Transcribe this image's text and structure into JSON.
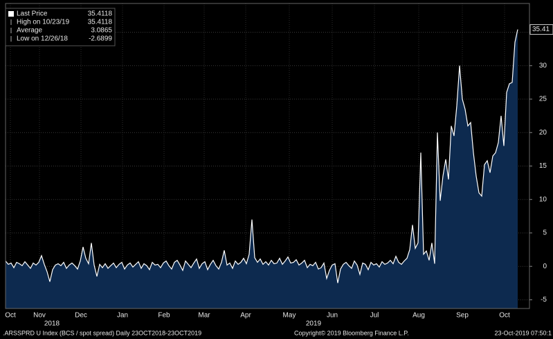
{
  "chart_data": {
    "type": "area",
    "legend": [
      {
        "label": "Last Price",
        "value": 35.4118
      },
      {
        "label": "High on 10/23/19",
        "value": 35.4118
      },
      {
        "label": "Average",
        "value": 3.0865
      },
      {
        "label": "Low on 12/26/18",
        "value": -2.6899
      }
    ],
    "series": [
      {
        "name": "Last Price",
        "color": "#ffffff",
        "fill": "#0d2a4f",
        "values": [
          0.8,
          0.3,
          0.5,
          -0.2,
          0.6,
          0.4,
          0.1,
          0.7,
          0.2,
          -0.3,
          0.5,
          0.2,
          0.6,
          1.6,
          0.3,
          -0.8,
          -2.3,
          -0.5,
          0.2,
          0.4,
          0.1,
          0.6,
          -0.3,
          0.2,
          0.5,
          0.1,
          -0.4,
          0.8,
          2.9,
          1.2,
          0.4,
          3.5,
          0.2,
          -1.5,
          0.3,
          -0.2,
          0.4,
          -0.3,
          0.1,
          0.5,
          -0.2,
          0.3,
          0.6,
          -0.4,
          0.2,
          0.5,
          -0.1,
          0.3,
          0.7,
          -0.3,
          0.4,
          0.1,
          -0.5,
          0.6,
          0.2,
          0.3,
          -0.2,
          0.5,
          0.8,
          0.1,
          -0.4,
          0.6,
          0.9,
          0.2,
          -0.6,
          0.8,
          0.3,
          -0.2,
          0.5,
          1.1,
          -0.3,
          0.4,
          0.7,
          -0.5,
          0.3,
          0.9,
          0.1,
          -0.4,
          0.6,
          2.4,
          0.2,
          0.5,
          -0.3,
          0.8,
          0.3,
          0.6,
          1.2,
          0.4,
          1.8,
          7.0,
          1.3,
          0.6,
          1.1,
          0.3,
          0.7,
          0.2,
          0.9,
          0.4,
          0.5,
          1.2,
          0.3,
          0.8,
          1.4,
          0.5,
          0.6,
          1.0,
          0.2,
          0.5,
          0.9,
          -0.2,
          0.3,
          0.1,
          0.6,
          -0.4,
          -0.2,
          0.5,
          -1.8,
          -0.6,
          0.2,
          0.4,
          -2.5,
          -0.4,
          0.3,
          0.6,
          0.1,
          -0.3,
          0.8,
          0.2,
          -1.2,
          0.5,
          0.3,
          -0.5,
          0.6,
          0.2,
          0.4,
          -0.1,
          0.7,
          0.3,
          0.5,
          0.9,
          0.4,
          1.5,
          0.6,
          0.3,
          0.8,
          1.2,
          2.5,
          6.2,
          2.7,
          3.5,
          17.0,
          1.8,
          2.3,
          0.9,
          3.5,
          0.4,
          20.0,
          9.8,
          13.5,
          16.0,
          13.0,
          21.0,
          19.5,
          24.0,
          30.0,
          25.0,
          23.5,
          21.0,
          21.5,
          17.0,
          13.5,
          11.0,
          10.5,
          15.2,
          15.8,
          14.0,
          16.5,
          17.0,
          18.5,
          22.5,
          18.0,
          26.0,
          27.3,
          27.5,
          33.5,
          35.4118
        ]
      }
    ],
    "last_value_tag": 35.41,
    "ylim": [
      -6.3,
      39.3
    ],
    "yticks": [
      -5,
      0,
      5,
      10,
      15,
      20,
      25,
      30,
      35
    ],
    "xlim": [
      0,
      189.25
    ],
    "xticks": [
      {
        "value": 1.75,
        "label": "Oct"
      },
      {
        "value": 12.25,
        "label": "Nov"
      },
      {
        "value": 27.25,
        "label": "Dec"
      },
      {
        "value": 42.25,
        "label": "Jan"
      },
      {
        "value": 57.25,
        "label": "Feb"
      },
      {
        "value": 71.75,
        "label": "Mar"
      },
      {
        "value": 86.75,
        "label": "Apr"
      },
      {
        "value": 102.5,
        "label": "May"
      },
      {
        "value": 118,
        "label": "Jun"
      },
      {
        "value": 133.25,
        "label": "Jul"
      },
      {
        "value": 149.25,
        "label": "Aug"
      },
      {
        "value": 165,
        "label": "Sep"
      },
      {
        "value": 180.25,
        "label": "Oct"
      }
    ],
    "year_labels": [
      {
        "value": 16.75,
        "label": "2018"
      },
      {
        "value": 111.25,
        "label": "2019"
      }
    ],
    "grid": true,
    "footer": {
      "left": ".ARSSPRD U Index (BCS / spot spread)  Daily 23OCT2018-23OCT2019",
      "center": "Copyright© 2019 Bloomberg Finance L.P.",
      "right": "23-Oct-2019 07:50:1"
    }
  }
}
